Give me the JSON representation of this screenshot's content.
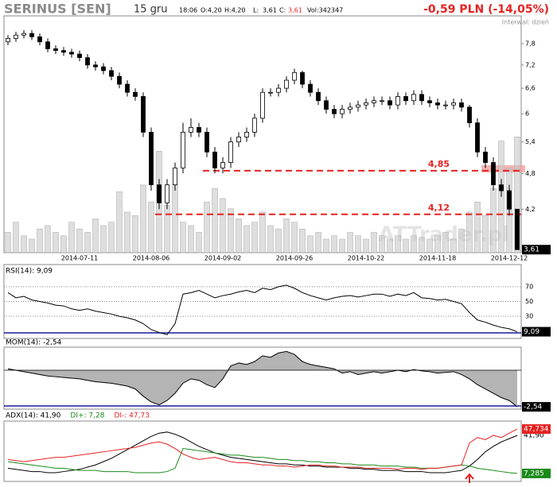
{
  "header": {
    "title": "SERINUS [SEN]",
    "date": "15 gru",
    "time": "18:06",
    "open": "O:4,20",
    "high": "H:4,20",
    "low_label": "L:",
    "low": "3,61",
    "close_label": "C:",
    "close": "3,61",
    "volume": "Vol:342347",
    "change": "-0,59 PLN (-14,05%)",
    "interval": "Interwał: dzień"
  },
  "chart_data": [
    {
      "type": "candlestick",
      "watermark": "ATTrader.pl",
      "log_scale": true,
      "categories": [
        null,
        null,
        null,
        null,
        null,
        null,
        null,
        null,
        null,
        "2014-07-11",
        null,
        null,
        null,
        null,
        null,
        null,
        null,
        null,
        "2014-08-06",
        null,
        null,
        null,
        null,
        null,
        null,
        null,
        null,
        "2014-09-02",
        null,
        null,
        null,
        null,
        null,
        null,
        null,
        null,
        "2014-09-26",
        null,
        null,
        null,
        null,
        null,
        null,
        null,
        null,
        "2014-10-22",
        null,
        null,
        null,
        null,
        null,
        null,
        null,
        null,
        "2014-11-18",
        null,
        null,
        null,
        null,
        null,
        null,
        null,
        null,
        "2014-12-12",
        null
      ],
      "open": [
        7.85,
        7.95,
        8.05,
        8.1,
        8.0,
        7.85,
        7.65,
        7.6,
        7.55,
        7.5,
        7.4,
        7.2,
        7.15,
        7.05,
        6.9,
        6.7,
        6.5,
        6.4,
        5.6,
        4.6,
        4.3,
        4.6,
        4.9,
        5.6,
        5.7,
        5.6,
        5.2,
        4.9,
        5.0,
        5.4,
        5.5,
        5.6,
        5.9,
        6.5,
        6.5,
        6.6,
        6.8,
        7.0,
        6.7,
        6.5,
        6.3,
        6.1,
        6.0,
        6.1,
        6.15,
        6.2,
        6.25,
        6.3,
        6.3,
        6.2,
        6.4,
        6.3,
        6.45,
        6.3,
        6.25,
        6.2,
        6.2,
        6.25,
        6.15,
        5.8,
        5.2,
        5.0,
        4.6,
        4.5,
        4.2
      ],
      "high": [
        8.05,
        8.15,
        8.2,
        8.2,
        8.1,
        7.95,
        7.75,
        7.7,
        7.65,
        7.6,
        7.5,
        7.3,
        7.25,
        7.15,
        7.0,
        6.8,
        6.6,
        6.5,
        5.7,
        4.7,
        4.7,
        5.0,
        5.8,
        5.9,
        5.8,
        5.7,
        5.3,
        5.1,
        5.5,
        5.6,
        5.7,
        6.0,
        6.6,
        6.6,
        6.7,
        6.9,
        7.1,
        7.05,
        6.8,
        6.6,
        6.4,
        6.2,
        6.2,
        6.25,
        6.3,
        6.35,
        6.4,
        6.4,
        6.4,
        6.5,
        6.5,
        6.55,
        6.55,
        6.4,
        6.35,
        6.3,
        6.35,
        6.35,
        6.2,
        5.9,
        5.3,
        5.1,
        4.7,
        4.6,
        4.2
      ],
      "low": [
        7.75,
        7.85,
        7.95,
        7.9,
        7.75,
        7.55,
        7.5,
        7.45,
        7.4,
        7.3,
        7.1,
        7.05,
        6.95,
        6.8,
        6.6,
        6.4,
        6.3,
        5.5,
        4.5,
        4.2,
        4.2,
        4.5,
        4.8,
        5.5,
        5.5,
        5.1,
        4.8,
        4.8,
        4.9,
        5.3,
        5.4,
        5.5,
        5.8,
        6.4,
        6.4,
        6.5,
        6.7,
        6.6,
        6.4,
        6.2,
        6.0,
        5.9,
        5.9,
        6.0,
        6.05,
        6.1,
        6.15,
        6.2,
        6.1,
        6.1,
        6.2,
        6.2,
        6.2,
        6.15,
        6.1,
        6.1,
        6.1,
        6.05,
        5.7,
        5.1,
        4.9,
        4.5,
        4.4,
        4.1,
        3.61
      ],
      "close": [
        7.95,
        8.05,
        8.1,
        8.0,
        7.85,
        7.65,
        7.6,
        7.55,
        7.5,
        7.4,
        7.2,
        7.15,
        7.05,
        6.9,
        6.7,
        6.5,
        6.4,
        5.6,
        4.6,
        4.3,
        4.6,
        4.9,
        5.6,
        5.7,
        5.6,
        5.2,
        4.9,
        5.0,
        5.4,
        5.5,
        5.6,
        5.9,
        6.5,
        6.5,
        6.6,
        6.8,
        7.0,
        6.7,
        6.5,
        6.3,
        6.1,
        6.0,
        6.1,
        6.15,
        6.2,
        6.25,
        6.3,
        6.3,
        6.2,
        6.4,
        6.3,
        6.45,
        6.3,
        6.25,
        6.2,
        6.2,
        6.25,
        6.15,
        5.8,
        5.2,
        5.0,
        4.6,
        4.5,
        4.2,
        3.61
      ],
      "volume": [
        60000,
        90000,
        50000,
        40000,
        70000,
        80000,
        60000,
        50000,
        90000,
        70000,
        60000,
        100000,
        80000,
        90000,
        180000,
        120000,
        110000,
        200000,
        150000,
        300000,
        140000,
        200000,
        90000,
        80000,
        60000,
        150000,
        190000,
        160000,
        130000,
        100000,
        80000,
        90000,
        120000,
        80000,
        70000,
        100000,
        90000,
        70000,
        50000,
        60000,
        40000,
        50000,
        40000,
        60000,
        50000,
        40000,
        60000,
        50000,
        40000,
        50000,
        40000,
        50000,
        45000,
        40000,
        50000,
        60000,
        40000,
        70000,
        120000,
        150000,
        110000,
        190000,
        330000,
        250000,
        342347
      ],
      "ylim": [
        3.57,
        8.65
      ],
      "y2lim": [
        0,
        700000
      ],
      "yticks": [
        {
          "value": 7.8,
          "label": "7,8"
        },
        {
          "value": 7.2,
          "label": "7,2"
        },
        {
          "value": 6.6,
          "label": "6,6"
        },
        6,
        {
          "value": 5.4,
          "label": "5,4"
        },
        {
          "value": 4.8,
          "label": "4,8"
        },
        {
          "value": 4.2,
          "label": "4,2"
        }
      ],
      "levels": [
        {
          "value": 4.85,
          "label": "4,85"
        },
        {
          "value": 4.12,
          "label": "4,12"
        }
      ],
      "last_label": "3,61",
      "level_color": "#e52222"
    },
    {
      "type": "line",
      "title": "RSI(14): 9,09",
      "ylim": [
        0,
        100
      ],
      "yticks": [
        30,
        50,
        70
      ],
      "grid": true,
      "color": "#000",
      "last_label": "9,09",
      "values": [
        62,
        55,
        57,
        52,
        50,
        48,
        45,
        44,
        40,
        38,
        40,
        37,
        35,
        33,
        30,
        28,
        25,
        20,
        12,
        8,
        5,
        20,
        60,
        62,
        65,
        60,
        55,
        58,
        60,
        63,
        65,
        62,
        68,
        66,
        70,
        72,
        68,
        62,
        58,
        55,
        52,
        55,
        57,
        58,
        56,
        58,
        60,
        60,
        57,
        60,
        58,
        62,
        55,
        54,
        52,
        53,
        50,
        47,
        35,
        25,
        22,
        18,
        15,
        13,
        9.09
      ]
    },
    {
      "type": "area",
      "title": "MOM(14): -2,54",
      "ylim": [
        -2.7,
        1.6
      ],
      "color": "#000",
      "fill": "#b4b4b4",
      "last_label": "-2,54",
      "values": [
        0.1,
        0.0,
        -0.1,
        -0.2,
        -0.3,
        -0.4,
        -0.45,
        -0.5,
        -0.55,
        -0.6,
        -0.7,
        -0.8,
        -0.85,
        -0.9,
        -1.0,
        -1.1,
        -1.3,
        -1.8,
        -2.2,
        -2.4,
        -2.1,
        -1.6,
        -0.9,
        -0.6,
        -0.7,
        -1.0,
        -1.2,
        -0.6,
        0.3,
        0.5,
        0.4,
        0.6,
        1.0,
        0.9,
        1.2,
        1.3,
        1.1,
        0.6,
        0.4,
        0.3,
        0.2,
        0.1,
        -0.2,
        -0.1,
        -0.3,
        -0.2,
        -0.1,
        -0.2,
        -0.1,
        0.0,
        -0.1,
        0.05,
        -0.05,
        -0.1,
        -0.2,
        -0.15,
        -0.1,
        -0.3,
        -0.6,
        -1.0,
        -1.3,
        -1.6,
        -1.9,
        -2.1,
        -2.54
      ]
    },
    {
      "type": "line",
      "ylim": [
        0,
        55
      ],
      "series": [
        {
          "name": "ADX(14): 41,90",
          "color": "#000000",
          "last_label": "41,90",
          "values": [
            12,
            11,
            10,
            9,
            9,
            8,
            8,
            9,
            10,
            11,
            13,
            15,
            18,
            21,
            25,
            29,
            33,
            37,
            41,
            44,
            45,
            43,
            40,
            36,
            32,
            29,
            26,
            24,
            22,
            21,
            20,
            19,
            18,
            17,
            16,
            16,
            15,
            15,
            14,
            14,
            13,
            13,
            13,
            12,
            12,
            11,
            11,
            10,
            10,
            10,
            9,
            9,
            9,
            8,
            8,
            8,
            9,
            10,
            14,
            20,
            27,
            32,
            36,
            39,
            41.9
          ]
        },
        {
          "name": "DI+: 7,28",
          "color": "#1a8a1a",
          "last_label": "7,285",
          "values": [
            18,
            17,
            16,
            15,
            14,
            13,
            12,
            12,
            11,
            10,
            10,
            10,
            9,
            9,
            9,
            9,
            8,
            8,
            8,
            8,
            9,
            12,
            30,
            29,
            28,
            27,
            26,
            25,
            24,
            24,
            23,
            22,
            22,
            21,
            20,
            20,
            19,
            19,
            18,
            18,
            17,
            17,
            16,
            16,
            15,
            15,
            15,
            14,
            14,
            14,
            13,
            13,
            12,
            12,
            12,
            13,
            14,
            15,
            14,
            12,
            11,
            10,
            9,
            8,
            7.285
          ]
        },
        {
          "name": "DI-: 47,73",
          "color": "#e52222",
          "last_label": "47,734",
          "values": [
            20,
            19,
            18,
            19,
            20,
            21,
            22,
            22,
            23,
            24,
            25,
            26,
            27,
            28,
            29,
            30,
            31,
            33,
            35,
            36,
            34,
            30,
            25,
            22,
            20,
            21,
            22,
            20,
            18,
            17,
            17,
            16,
            15,
            15,
            14,
            14,
            13,
            14,
            15,
            15,
            14,
            14,
            13,
            13,
            13,
            12,
            12,
            12,
            12,
            11,
            12,
            12,
            11,
            12,
            12,
            13,
            14,
            15,
            35,
            40,
            38,
            42,
            40,
            44,
            47.734
          ]
        }
      ]
    }
  ]
}
